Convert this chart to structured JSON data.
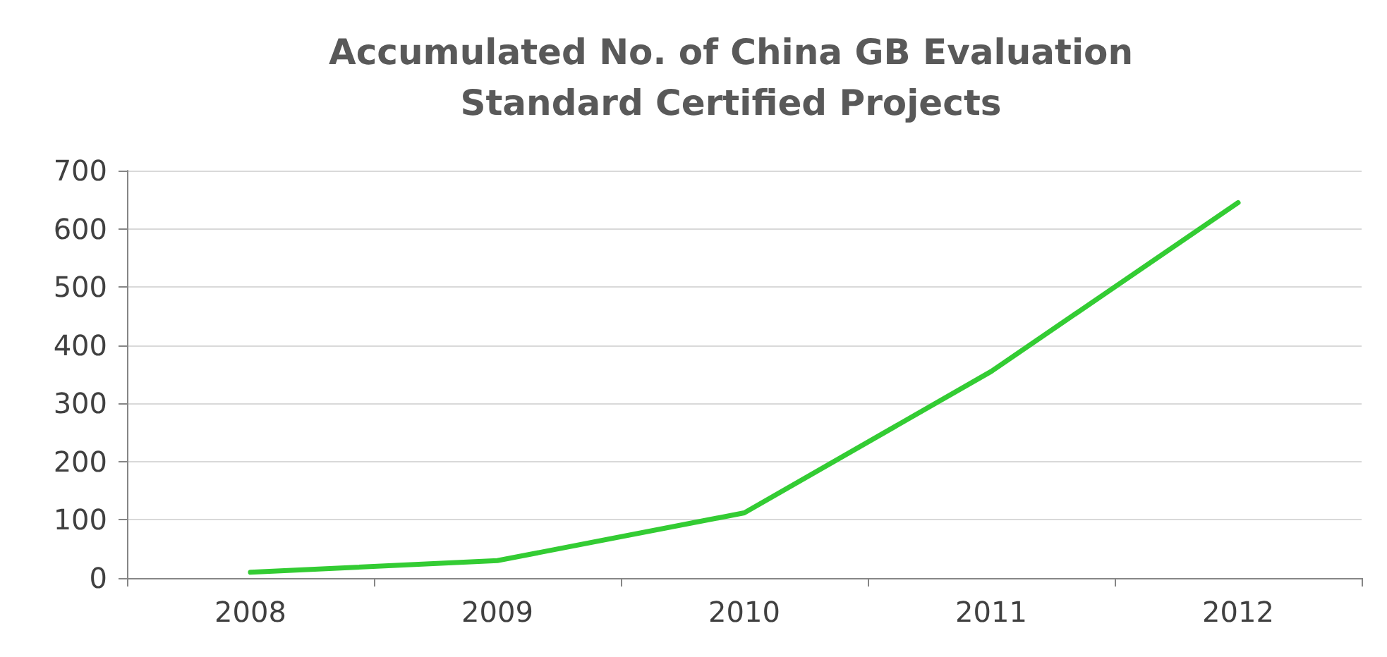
{
  "chart_data": {
    "type": "line",
    "title": "Accumulated No. of China GB Evaluation\nStandard Certified Projects",
    "categories": [
      "2008",
      "2009",
      "2010",
      "2011",
      "2012"
    ],
    "series": [
      {
        "color": "#33cc33",
        "values": [
          10,
          30,
          112,
          355,
          645
        ]
      }
    ],
    "ylim": [
      0,
      700
    ],
    "yticks": [
      0,
      100,
      200,
      300,
      400,
      500,
      600,
      700
    ],
    "grid": "y",
    "marker": "none",
    "line_style": "solid"
  }
}
